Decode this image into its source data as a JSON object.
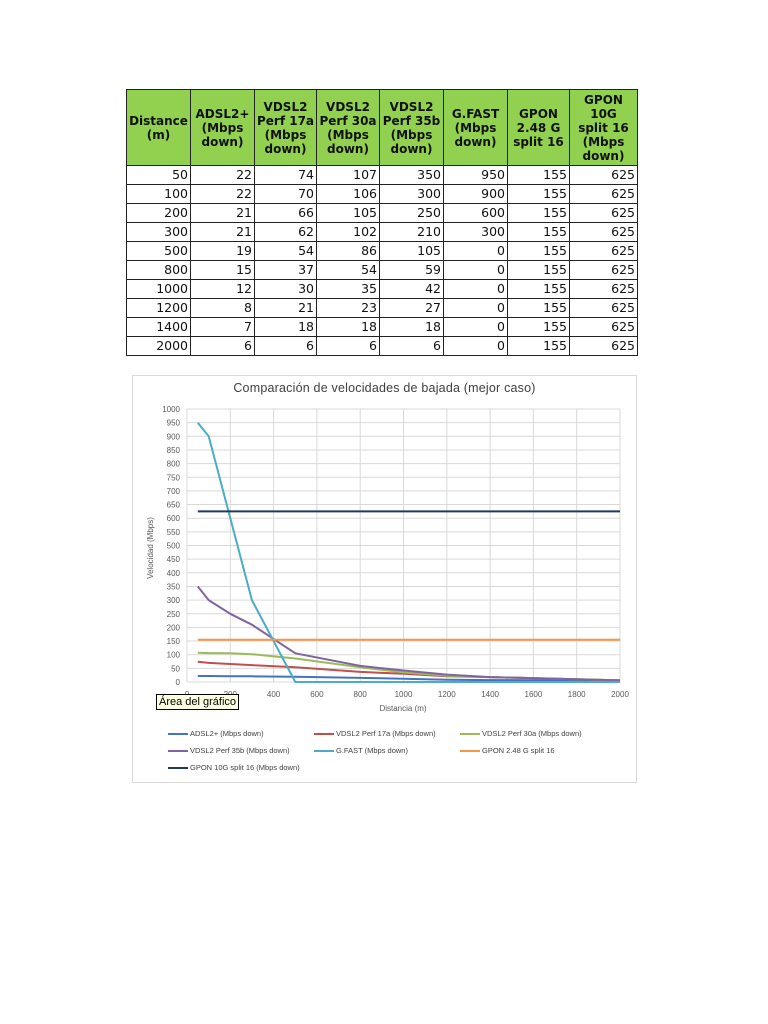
{
  "table": {
    "headers": [
      "Distance\n(m)",
      "ADSL2+\n(Mbps\ndown)",
      "VDSL2\nPerf 17a\n(Mbps\ndown)",
      "VDSL2\nPerf 30a\n(Mbps\ndown)",
      "VDSL2\nPerf 35b\n(Mbps\ndown)",
      "G.FAST\n(Mbps\ndown)",
      "GPON\n2.48 G\nsplit 16",
      "GPON 10G\nsplit 16\n(Mbps\ndown)"
    ],
    "header_color": "#92d050",
    "rows": [
      [
        "50",
        "22",
        "74",
        "107",
        "350",
        "950",
        "155",
        "625"
      ],
      [
        "100",
        "22",
        "70",
        "106",
        "300",
        "900",
        "155",
        "625"
      ],
      [
        "200",
        "21",
        "66",
        "105",
        "250",
        "600",
        "155",
        "625"
      ],
      [
        "300",
        "21",
        "62",
        "102",
        "210",
        "300",
        "155",
        "625"
      ],
      [
        "500",
        "19",
        "54",
        "86",
        "105",
        "0",
        "155",
        "625"
      ],
      [
        "800",
        "15",
        "37",
        "54",
        "59",
        "0",
        "155",
        "625"
      ],
      [
        "1000",
        "12",
        "30",
        "35",
        "42",
        "0",
        "155",
        "625"
      ],
      [
        "1200",
        "8",
        "21",
        "23",
        "27",
        "0",
        "155",
        "625"
      ],
      [
        "1400",
        "7",
        "18",
        "18",
        "18",
        "0",
        "155",
        "625"
      ],
      [
        "2000",
        "6",
        "6",
        "6",
        "6",
        "0",
        "155",
        "625"
      ]
    ]
  },
  "tooltip": "Área del gráfico",
  "chart_data": {
    "type": "line",
    "title": "Comparación  de velocidades  de bajada (mejor caso)",
    "xlabel": "Distancia  (m)",
    "ylabel": "Velocidad  (Mbps)",
    "x": [
      50,
      100,
      200,
      300,
      500,
      800,
      1000,
      1200,
      1400,
      2000
    ],
    "xlim": [
      0,
      2000
    ],
    "ylim": [
      0,
      1000
    ],
    "xticks": [
      "0",
      "200",
      "400",
      "600",
      "800",
      "1000",
      "1200",
      "1400",
      "1600",
      "1800",
      "2000"
    ],
    "yticks": [
      "0",
      "50",
      "100",
      "150",
      "200",
      "250",
      "300",
      "350",
      "400",
      "450",
      "500",
      "550",
      "600",
      "650",
      "700",
      "750",
      "800",
      "850",
      "900",
      "950",
      "1000"
    ],
    "grid": true,
    "legend_position": "bottom",
    "series": [
      {
        "name": "ADSL2+ (Mbps down)",
        "color": "#4472c4",
        "values": [
          22,
          22,
          21,
          21,
          19,
          15,
          12,
          8,
          7,
          6
        ]
      },
      {
        "name": "VDSL2 Perf 17a (Mbps down)",
        "color": "#c0504d",
        "values": [
          74,
          70,
          66,
          62,
          54,
          37,
          30,
          21,
          18,
          6
        ]
      },
      {
        "name": "VDSL2 Perf 30a (Mbps down)",
        "color": "#9bbb59",
        "values": [
          107,
          106,
          105,
          102,
          86,
          54,
          35,
          23,
          18,
          6
        ]
      },
      {
        "name": "VDSL2 Perf 35b (Mbps down)",
        "color": "#8064a2",
        "values": [
          350,
          300,
          250,
          210,
          105,
          59,
          42,
          27,
          18,
          6
        ]
      },
      {
        "name": "G.FAST (Mbps down)",
        "color": "#4bacc6",
        "values": [
          950,
          900,
          600,
          300,
          0,
          0,
          0,
          0,
          0,
          0
        ]
      },
      {
        "name": "GPON 2.48 G split 16",
        "color": "#f79646",
        "values": [
          155,
          155,
          155,
          155,
          155,
          155,
          155,
          155,
          155,
          155
        ]
      },
      {
        "name": "GPON 10G split 16 (Mbps down)",
        "color": "#1f3864",
        "values": [
          625,
          625,
          625,
          625,
          625,
          625,
          625,
          625,
          625,
          625
        ]
      }
    ]
  }
}
